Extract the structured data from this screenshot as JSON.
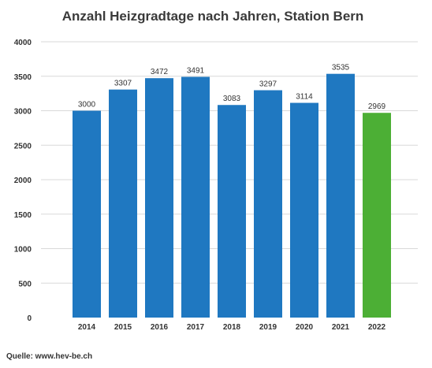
{
  "source": "Quelle: www.hev-be.ch",
  "colors": {
    "default_bar": "#1f78c1",
    "highlight_bar": "#4caf35"
  },
  "chart_data": {
    "type": "bar",
    "title": "Anzahl Heizgradtage nach Jahren, Station Bern",
    "xlabel": "",
    "ylabel": "",
    "ylim": [
      0,
      4000
    ],
    "yticks": [
      0,
      500,
      1000,
      1500,
      2000,
      2500,
      3000,
      3500,
      4000
    ],
    "grid": true,
    "legend": "none",
    "categories": [
      "2014",
      "2015",
      "2016",
      "2017",
      "2018",
      "2019",
      "2020",
      "2021",
      "2022"
    ],
    "values": [
      3000,
      3307,
      3472,
      3491,
      3083,
      3297,
      3114,
      3535,
      2969
    ],
    "highlight_category": "2022"
  }
}
